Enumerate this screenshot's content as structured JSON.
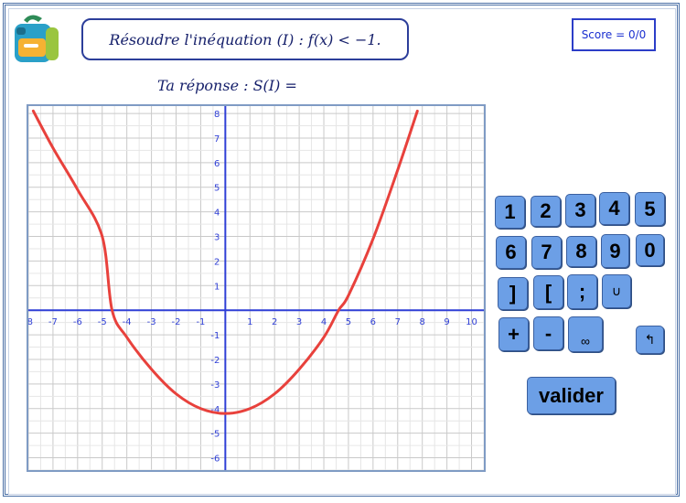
{
  "prompt": "Résoudre l'inéquation (I) :  f(x) < −1.",
  "score": "Score = 0/0",
  "answer_label": "Ta réponse : S(I) =",
  "keypad": {
    "k1": "1",
    "k2": "2",
    "k3": "3",
    "k4": "4",
    "k5": "5",
    "k6": "6",
    "k7": "7",
    "k8": "8",
    "k9": "9",
    "k0": "0",
    "bracket_right": "]",
    "bracket_left": "[",
    "semicolon": ";",
    "union": "∪",
    "plus": "+",
    "minus": "-",
    "infinity": "∞",
    "backspace": "↰",
    "validate": "valider"
  },
  "chart_data": {
    "type": "line",
    "title": "",
    "xlabel": "",
    "ylabel": "",
    "xlim": [
      -8,
      10.5
    ],
    "ylim": [
      -6.5,
      8.3
    ],
    "x_ticks": [
      "-8",
      "-7",
      "-6",
      "-5",
      "-4",
      "-3",
      "-2",
      "-1",
      "1",
      "2",
      "3",
      "4",
      "5",
      "6",
      "7",
      "8",
      "9",
      "10"
    ],
    "y_ticks": [
      "-6",
      "-5",
      "-4",
      "-3",
      "-2",
      "-1",
      "1",
      "2",
      "3",
      "4",
      "5",
      "6",
      "7",
      "8"
    ],
    "grid": true,
    "series": [
      {
        "color": "#e8413c",
        "x": [
          -7.8,
          -7,
          -6,
          -5,
          -4.6,
          -4,
          -3,
          -2,
          -1,
          0,
          1,
          2,
          3,
          4,
          4.6,
          5,
          6,
          7,
          7.8
        ],
        "y": [
          8.1,
          6.6,
          4.9,
          3.0,
          0.0,
          -1.1,
          -2.4,
          -3.4,
          -4.0,
          -4.2,
          -4.0,
          -3.4,
          -2.4,
          -1.1,
          0.0,
          0.6,
          2.9,
          5.7,
          8.1
        ]
      }
    ]
  }
}
